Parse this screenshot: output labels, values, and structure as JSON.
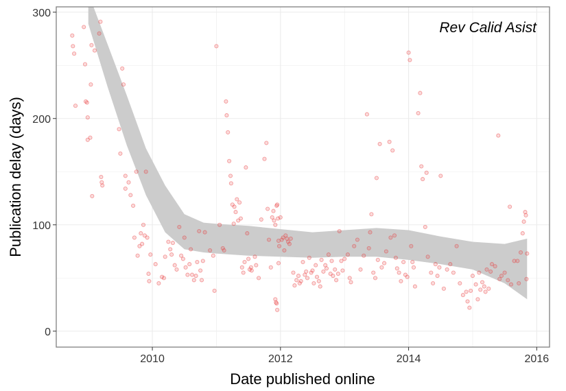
{
  "chart_data": {
    "type": "scatter",
    "annotation": "Rev Calid Asist",
    "xlabel": "Date published online",
    "ylabel": "Publication delay (days)",
    "xlim": [
      2008.5,
      2016.2
    ],
    "ylim": [
      -15,
      305
    ],
    "x_ticks": [
      2010,
      2012,
      2014,
      2016
    ],
    "x_tick_labels": [
      "2010",
      "2012",
      "2014",
      "2016"
    ],
    "y_ticks": [
      0,
      100,
      200,
      300
    ],
    "y_tick_labels": [
      "0",
      "100",
      "200",
      "300"
    ],
    "grid": true,
    "legend": "none",
    "colors": {
      "points": "#e8373a",
      "ribbon": "#cccccc",
      "panel_border": "#7f7f7f",
      "grid": "#ebebeb"
    },
    "smooth": {
      "x": [
        2009.0,
        2009.3,
        2009.6,
        2009.9,
        2010.2,
        2010.5,
        2010.8,
        2011.0,
        2011.5,
        2012.0,
        2012.5,
        2013.0,
        2013.5,
        2014.0,
        2014.5,
        2015.0,
        2015.5,
        2015.85
      ],
      "lower": [
        289,
        230,
        175,
        128,
        93,
        77,
        74,
        73,
        71,
        70,
        69,
        70,
        70,
        67,
        63,
        58,
        45,
        30
      ],
      "upper": [
        318,
        270,
        222,
        172,
        137,
        110,
        102,
        101,
        99,
        96,
        93,
        95,
        97,
        95,
        89,
        84,
        82,
        87
      ]
    },
    "points": [
      [
        2008.75,
        278
      ],
      [
        2008.76,
        268
      ],
      [
        2008.78,
        261
      ],
      [
        2008.8,
        212
      ],
      [
        2008.93,
        286
      ],
      [
        2008.95,
        251
      ],
      [
        2008.96,
        216
      ],
      [
        2008.98,
        215
      ],
      [
        2008.99,
        201
      ],
      [
        2008.99,
        180
      ],
      [
        2009.03,
        182
      ],
      [
        2009.04,
        232
      ],
      [
        2009.05,
        269
      ],
      [
        2009.06,
        127
      ],
      [
        2009.1,
        264
      ],
      [
        2009.17,
        280
      ],
      [
        2009.19,
        291
      ],
      [
        2009.2,
        145
      ],
      [
        2009.21,
        140
      ],
      [
        2009.22,
        137
      ],
      [
        2009.48,
        190
      ],
      [
        2009.5,
        167
      ],
      [
        2009.53,
        247
      ],
      [
        2009.55,
        232
      ],
      [
        2009.58,
        146
      ],
      [
        2009.58,
        134
      ],
      [
        2009.63,
        140
      ],
      [
        2009.66,
        128
      ],
      [
        2009.7,
        118
      ],
      [
        2009.72,
        88
      ],
      [
        2009.75,
        150
      ],
      [
        2009.77,
        71
      ],
      [
        2009.8,
        80
      ],
      [
        2009.82,
        92
      ],
      [
        2009.84,
        82
      ],
      [
        2009.86,
        100
      ],
      [
        2009.88,
        90
      ],
      [
        2009.9,
        150
      ],
      [
        2009.92,
        88
      ],
      [
        2009.94,
        54
      ],
      [
        2009.95,
        47
      ],
      [
        2009.97,
        72
      ],
      [
        2010.05,
        63
      ],
      [
        2010.1,
        45
      ],
      [
        2010.15,
        51
      ],
      [
        2010.18,
        50
      ],
      [
        2010.2,
        70
      ],
      [
        2010.25,
        84
      ],
      [
        2010.28,
        77
      ],
      [
        2010.3,
        72
      ],
      [
        2010.32,
        83
      ],
      [
        2010.35,
        62
      ],
      [
        2010.38,
        58
      ],
      [
        2010.42,
        98
      ],
      [
        2010.45,
        71
      ],
      [
        2010.48,
        68
      ],
      [
        2010.5,
        88
      ],
      [
        2010.52,
        60
      ],
      [
        2010.55,
        53
      ],
      [
        2010.58,
        63
      ],
      [
        2010.6,
        77
      ],
      [
        2010.62,
        53
      ],
      [
        2010.65,
        48
      ],
      [
        2010.68,
        52
      ],
      [
        2010.7,
        65
      ],
      [
        2010.73,
        94
      ],
      [
        2010.75,
        57
      ],
      [
        2010.77,
        48
      ],
      [
        2010.79,
        66
      ],
      [
        2010.82,
        93
      ],
      [
        2010.9,
        76
      ],
      [
        2010.95,
        71
      ],
      [
        2010.97,
        38
      ],
      [
        2011.0,
        268
      ],
      [
        2011.05,
        100
      ],
      [
        2011.1,
        78
      ],
      [
        2011.12,
        76
      ],
      [
        2011.15,
        216
      ],
      [
        2011.16,
        203
      ],
      [
        2011.18,
        187
      ],
      [
        2011.2,
        160
      ],
      [
        2011.22,
        146
      ],
      [
        2011.23,
        139
      ],
      [
        2011.25,
        119
      ],
      [
        2011.27,
        101
      ],
      [
        2011.28,
        117
      ],
      [
        2011.3,
        112
      ],
      [
        2011.32,
        124
      ],
      [
        2011.34,
        104
      ],
      [
        2011.36,
        121
      ],
      [
        2011.38,
        106
      ],
      [
        2011.4,
        60
      ],
      [
        2011.42,
        55
      ],
      [
        2011.44,
        65
      ],
      [
        2011.46,
        154
      ],
      [
        2011.48,
        92
      ],
      [
        2011.5,
        68
      ],
      [
        2011.52,
        58
      ],
      [
        2011.54,
        60
      ],
      [
        2011.55,
        57
      ],
      [
        2011.6,
        70
      ],
      [
        2011.62,
        62
      ],
      [
        2011.66,
        50
      ],
      [
        2011.7,
        105
      ],
      [
        2011.75,
        162
      ],
      [
        2011.78,
        177
      ],
      [
        2011.8,
        115
      ],
      [
        2011.82,
        86
      ],
      [
        2011.85,
        60
      ],
      [
        2011.87,
        107
      ],
      [
        2011.89,
        113
      ],
      [
        2011.9,
        104
      ],
      [
        2011.92,
        100
      ],
      [
        2011.94,
        118
      ],
      [
        2011.95,
        119
      ],
      [
        2011.96,
        106
      ],
      [
        2011.97,
        85
      ],
      [
        2011.98,
        80
      ],
      [
        2012.0,
        107
      ],
      [
        2012.02,
        86
      ],
      [
        2012.04,
        88
      ],
      [
        2012.06,
        76
      ],
      [
        2012.08,
        90
      ],
      [
        2012.1,
        87
      ],
      [
        2012.12,
        84
      ],
      [
        2012.14,
        82
      ],
      [
        2012.16,
        87
      ],
      [
        2011.92,
        30
      ],
      [
        2011.93,
        27
      ],
      [
        2011.94,
        26
      ],
      [
        2011.95,
        20
      ],
      [
        2011.97,
        64
      ],
      [
        2012.2,
        55
      ],
      [
        2012.22,
        43
      ],
      [
        2012.25,
        48
      ],
      [
        2012.28,
        52
      ],
      [
        2012.3,
        45
      ],
      [
        2012.32,
        47
      ],
      [
        2012.35,
        65
      ],
      [
        2012.38,
        53
      ],
      [
        2012.4,
        56
      ],
      [
        2012.42,
        50
      ],
      [
        2012.45,
        69
      ],
      [
        2012.48,
        55
      ],
      [
        2012.5,
        57
      ],
      [
        2012.52,
        45
      ],
      [
        2012.55,
        62
      ],
      [
        2012.57,
        51
      ],
      [
        2012.6,
        47
      ],
      [
        2012.62,
        42
      ],
      [
        2012.64,
        67
      ],
      [
        2012.67,
        56
      ],
      [
        2012.7,
        62
      ],
      [
        2012.72,
        59
      ],
      [
        2012.75,
        72
      ],
      [
        2012.78,
        54
      ],
      [
        2012.8,
        66
      ],
      [
        2012.82,
        52
      ],
      [
        2012.85,
        58
      ],
      [
        2012.87,
        48
      ],
      [
        2012.9,
        54
      ],
      [
        2012.92,
        94
      ],
      [
        2012.95,
        66
      ],
      [
        2012.97,
        57
      ],
      [
        2013.0,
        68
      ],
      [
        2013.05,
        72
      ],
      [
        2013.08,
        50
      ],
      [
        2013.1,
        46
      ],
      [
        2013.15,
        80
      ],
      [
        2013.2,
        86
      ],
      [
        2013.25,
        58
      ],
      [
        2013.3,
        71
      ],
      [
        2013.35,
        204
      ],
      [
        2013.38,
        78
      ],
      [
        2013.4,
        93
      ],
      [
        2013.42,
        110
      ],
      [
        2013.45,
        55
      ],
      [
        2013.48,
        50
      ],
      [
        2013.5,
        144
      ],
      [
        2013.52,
        67
      ],
      [
        2013.55,
        176
      ],
      [
        2013.58,
        60
      ],
      [
        2013.62,
        64
      ],
      [
        2013.65,
        75
      ],
      [
        2013.7,
        178
      ],
      [
        2013.72,
        88
      ],
      [
        2013.75,
        170
      ],
      [
        2013.78,
        90
      ],
      [
        2013.8,
        69
      ],
      [
        2013.82,
        59
      ],
      [
        2013.85,
        55
      ],
      [
        2013.88,
        47
      ],
      [
        2013.92,
        65
      ],
      [
        2013.95,
        53
      ],
      [
        2013.98,
        51
      ],
      [
        2014.0,
        262
      ],
      [
        2014.02,
        255
      ],
      [
        2014.04,
        80
      ],
      [
        2014.06,
        65
      ],
      [
        2014.08,
        60
      ],
      [
        2014.1,
        42
      ],
      [
        2014.15,
        205
      ],
      [
        2014.18,
        224
      ],
      [
        2014.2,
        155
      ],
      [
        2014.22,
        143
      ],
      [
        2014.26,
        98
      ],
      [
        2014.28,
        149
      ],
      [
        2014.3,
        70
      ],
      [
        2014.35,
        55
      ],
      [
        2014.38,
        45
      ],
      [
        2014.42,
        63
      ],
      [
        2014.45,
        52
      ],
      [
        2014.48,
        60
      ],
      [
        2014.5,
        146
      ],
      [
        2014.55,
        40
      ],
      [
        2014.6,
        58
      ],
      [
        2014.65,
        63
      ],
      [
        2014.7,
        55
      ],
      [
        2014.75,
        80
      ],
      [
        2014.8,
        45
      ],
      [
        2014.85,
        34
      ],
      [
        2014.9,
        37
      ],
      [
        2014.92,
        28
      ],
      [
        2014.95,
        22
      ],
      [
        2014.97,
        38
      ],
      [
        2015.0,
        52
      ],
      [
        2015.05,
        44
      ],
      [
        2015.08,
        30
      ],
      [
        2015.1,
        55
      ],
      [
        2015.12,
        39
      ],
      [
        2015.15,
        46
      ],
      [
        2015.18,
        42
      ],
      [
        2015.2,
        37
      ],
      [
        2015.22,
        58
      ],
      [
        2015.25,
        40
      ],
      [
        2015.28,
        56
      ],
      [
        2015.3,
        63
      ],
      [
        2015.35,
        61
      ],
      [
        2015.4,
        184
      ],
      [
        2015.42,
        49
      ],
      [
        2015.45,
        52
      ],
      [
        2015.5,
        55
      ],
      [
        2015.55,
        48
      ],
      [
        2015.58,
        117
      ],
      [
        2015.6,
        44
      ],
      [
        2015.65,
        66
      ],
      [
        2015.7,
        66
      ],
      [
        2015.75,
        74
      ],
      [
        2015.78,
        92
      ],
      [
        2015.8,
        103
      ],
      [
        2015.82,
        112
      ],
      [
        2015.83,
        109
      ],
      [
        2015.84,
        49
      ],
      [
        2015.85,
        73
      ],
      [
        2015.72,
        45
      ]
    ]
  }
}
